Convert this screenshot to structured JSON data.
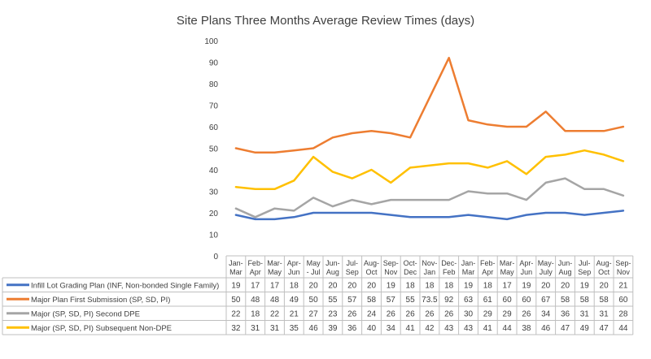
{
  "chart_data": {
    "type": "line",
    "title": "Site Plans Three Months Average Review Times (days)",
    "ylim": [
      0,
      100
    ],
    "yticks": [
      0,
      10,
      20,
      30,
      40,
      50,
      60,
      70,
      80,
      90,
      100
    ],
    "grid": false,
    "legend": "data-table",
    "categories": [
      [
        "Jan-",
        "Mar"
      ],
      [
        "Feb-",
        "Apr"
      ],
      [
        "Mar-",
        "May"
      ],
      [
        "Apr-",
        "Jun"
      ],
      [
        "May",
        "- Jul"
      ],
      [
        "Jun-",
        "Aug"
      ],
      [
        "Jul-",
        "Sep"
      ],
      [
        "Aug-",
        "Oct"
      ],
      [
        "Sep-",
        "Nov"
      ],
      [
        "Oct-",
        "Dec"
      ],
      [
        "Nov-",
        "Jan"
      ],
      [
        "Dec-",
        "Feb"
      ],
      [
        "Jan-",
        "Mar"
      ],
      [
        "Feb-",
        "Apr"
      ],
      [
        "Mar-",
        "May"
      ],
      [
        "Apr-",
        "Jun"
      ],
      [
        "May-",
        "July"
      ],
      [
        "Jun-",
        "Aug"
      ],
      [
        "Jul-",
        "Sep"
      ],
      [
        "Aug-",
        "Oct"
      ],
      [
        "Sep-",
        "Nov"
      ]
    ],
    "series": [
      {
        "name": "Infill Lot Grading Plan (INF, Non-bonded Single Family)",
        "color": "#4472c4",
        "values": [
          19,
          17,
          17,
          18,
          20,
          20,
          20,
          20,
          19,
          18,
          18,
          18,
          19,
          18,
          17,
          19,
          20,
          20,
          19,
          20,
          21
        ]
      },
      {
        "name": "Major Plan First Submission (SP, SD, PI)",
        "color": "#ed7d31",
        "values": [
          50,
          48,
          48,
          49,
          50,
          55,
          57,
          58,
          57,
          55,
          73.5,
          92,
          63,
          61,
          60,
          60,
          67,
          58,
          58,
          58,
          60
        ]
      },
      {
        "name": "Major (SP, SD, PI) Second DPE",
        "color": "#a5a5a5",
        "values": [
          22,
          18,
          22,
          21,
          27,
          23,
          26,
          24,
          26,
          26,
          26,
          26,
          30,
          29,
          29,
          26,
          34,
          36,
          31,
          31,
          28
        ]
      },
      {
        "name": "Major (SP, SD, PI) Subsequent Non-DPE",
        "color": "#ffc000",
        "values": [
          32,
          31,
          31,
          35,
          46,
          39,
          36,
          40,
          34,
          41,
          42,
          43,
          43,
          41,
          44,
          38,
          46,
          47,
          49,
          47,
          44
        ]
      }
    ]
  }
}
